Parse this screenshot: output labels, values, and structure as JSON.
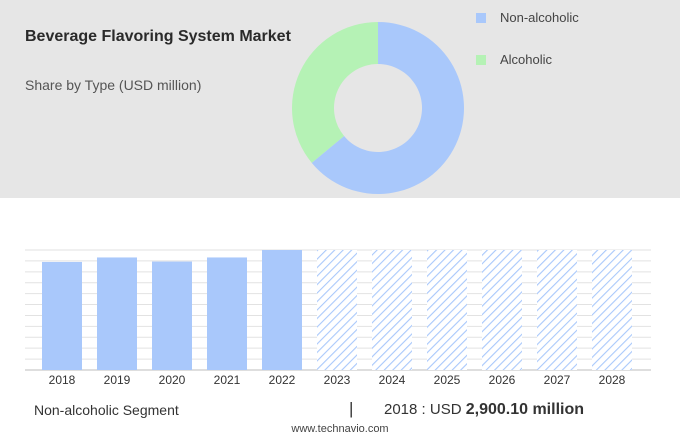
{
  "header": {
    "title": "Beverage Flavoring System Market",
    "subtitle": "Share by Type (USD million)"
  },
  "colors": {
    "non_alcoholic": "#a9c8fb",
    "alcoholic": "#b5f2b5",
    "bar": "#a9c8fb",
    "forecast_hatch": "#a9c8fb",
    "panel_bg": "#e6e6e6"
  },
  "chart_data": [
    {
      "type": "pie",
      "variant": "donut",
      "labels": [
        "Non-alcoholic",
        "Alcoholic"
      ],
      "values": [
        64,
        36
      ],
      "legend_position": "right"
    },
    {
      "type": "bar",
      "categories": [
        "2018",
        "2019",
        "2020",
        "2021",
        "2022",
        "2023",
        "2024",
        "2025",
        "2026",
        "2027",
        "2028"
      ],
      "values": [
        2900.1,
        3020,
        2910,
        3020,
        3220,
        3220,
        3220,
        3220,
        3220,
        3220,
        3220
      ],
      "forecast_from": "2023",
      "forecast_style": "hatched",
      "ylim": [
        0,
        3220
      ],
      "grid": true,
      "y_tick_labels_shown": false
    }
  ],
  "footer": {
    "segment": "Non-alcoholic Segment",
    "separator": "|",
    "year_label": "2018 : USD",
    "value": "2,900.10 million",
    "source": "www.technavio.com"
  }
}
